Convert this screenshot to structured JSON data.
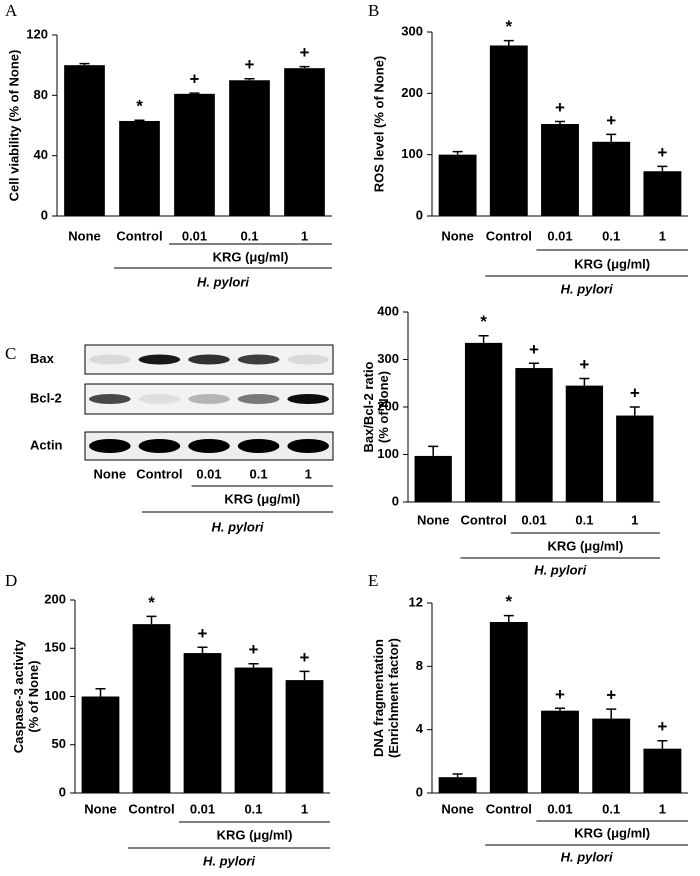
{
  "chart_data": [
    {
      "type": "bar",
      "panel": "A",
      "ylabel": [
        "Cell viability (% of None)"
      ],
      "categories": [
        "None",
        "Control",
        "0.01",
        "0.1",
        "1"
      ],
      "values": [
        100,
        63,
        81,
        90,
        98
      ],
      "errors": [
        1,
        0.5,
        0.5,
        1,
        1
      ],
      "annotations": [
        null,
        "*",
        "+",
        "+",
        "+"
      ],
      "color": "#000000",
      "ylim": [
        0,
        120
      ],
      "yticks": [
        0,
        40,
        80,
        120
      ],
      "subgroup_label": "KRG (μg/ml)",
      "group_label": "H. pylori"
    },
    {
      "type": "bar",
      "panel": "B",
      "ylabel": [
        "ROS level (% of None)"
      ],
      "categories": [
        "None",
        "Control",
        "0.01",
        "0.1",
        "1"
      ],
      "values": [
        100,
        278,
        150,
        121,
        73
      ],
      "errors": [
        5,
        8,
        4,
        12,
        8
      ],
      "annotations": [
        null,
        "*",
        "+",
        "+",
        "+"
      ],
      "color": "#000000",
      "ylim": [
        0,
        300
      ],
      "yticks": [
        0,
        100,
        200,
        300
      ],
      "subgroup_label": "KRG (μg/ml)",
      "group_label": "H. pylori"
    },
    {
      "type": "bar",
      "panel": "",
      "ylabel": [
        "Bax/Bcl-2 ratio",
        "(% of None)"
      ],
      "categories": [
        "None",
        "Control",
        "0.01",
        "0.1",
        "1"
      ],
      "values": [
        97,
        335,
        282,
        245,
        182
      ],
      "errors": [
        20,
        15,
        10,
        15,
        18
      ],
      "annotations": [
        null,
        "*",
        "+",
        "+",
        "+"
      ],
      "color": "#000000",
      "ylim": [
        0,
        400
      ],
      "yticks": [
        0,
        100,
        200,
        300,
        400
      ],
      "subgroup_label": "KRG (μg/ml)",
      "group_label": "H. pylori"
    },
    {
      "type": "bar",
      "panel": "D",
      "ylabel": [
        "Caspase-3 activity",
        "(% of None)"
      ],
      "categories": [
        "None",
        "Control",
        "0.01",
        "0.1",
        "1"
      ],
      "values": [
        100,
        175,
        145,
        130,
        117
      ],
      "errors": [
        8,
        8,
        6,
        4,
        9
      ],
      "annotations": [
        null,
        "*",
        "+",
        "+",
        "+"
      ],
      "color": "#000000",
      "ylim": [
        0,
        200
      ],
      "yticks": [
        0,
        50,
        100,
        150,
        200
      ],
      "subgroup_label": "KRG (μg/ml)",
      "group_label": "H. pylori"
    },
    {
      "type": "bar",
      "panel": "E",
      "ylabel": [
        "DNA fragmentation",
        "(Enrichment factor)"
      ],
      "categories": [
        "None",
        "Control",
        "0.01",
        "0.1",
        "1"
      ],
      "values": [
        1.0,
        10.8,
        5.2,
        4.7,
        2.8
      ],
      "errors": [
        0.2,
        0.4,
        0.15,
        0.6,
        0.5
      ],
      "annotations": [
        null,
        "*",
        "+",
        "+",
        "+"
      ],
      "color": "#000000",
      "ylim": [
        0,
        12
      ],
      "yticks": [
        0,
        4,
        8,
        12
      ],
      "subgroup_label": "KRG (μg/ml)",
      "group_label": "H. pylori"
    }
  ],
  "blot": {
    "panel": "C",
    "rows": [
      "Bax",
      "Bcl-2",
      "Actin"
    ],
    "categories": [
      "None",
      "Control",
      "0.01",
      "0.1",
      "1"
    ],
    "subgroup_label": "KRG (μg/ml)",
    "group_label": "H. pylori"
  }
}
